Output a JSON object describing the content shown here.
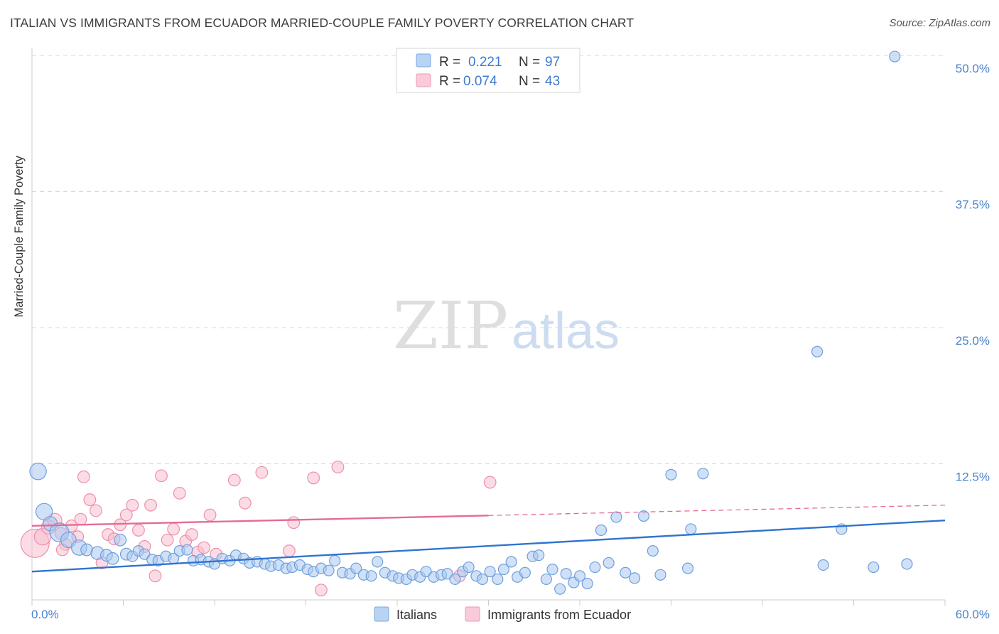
{
  "title": "ITALIAN VS IMMIGRANTS FROM ECUADOR MARRIED-COUPLE FAMILY POVERTY CORRELATION CHART",
  "source": "Source: ZipAtlas.com",
  "watermark": {
    "part1": "ZIP",
    "part2": "atlas"
  },
  "colors": {
    "blue_fill": "#a9c8f0",
    "blue_stroke": "#6e9fdc",
    "blue_line": "#2f74cf",
    "pink_fill": "#f7bfd0",
    "pink_stroke": "#ee8fab",
    "pink_line": "#e56b93",
    "axis_text": "#4a82cc",
    "grid": "#d9d9d9"
  },
  "chart_data": {
    "type": "scatter",
    "xlabel": "",
    "ylabel": "Married-Couple Family Poverty",
    "xlim": [
      0,
      60
    ],
    "ylim": [
      0,
      50
    ],
    "x_tick_labels": [
      {
        "value": 0,
        "label": "0.0%"
      },
      {
        "value": 60,
        "label": "60.0%"
      }
    ],
    "y_tick_labels": [
      {
        "value": 12.5,
        "label": "12.5%"
      },
      {
        "value": 25,
        "label": "25.0%"
      },
      {
        "value": 37.5,
        "label": "37.5%"
      },
      {
        "value": 50,
        "label": "50.0%"
      }
    ],
    "legend": {
      "position": "top-center",
      "rows": [
        {
          "r_label": "R =",
          "r_value": "0.221",
          "n_label": "N =",
          "n_value": "97"
        },
        {
          "r_label": "R =",
          "r_value": "0.074",
          "n_label": "N =",
          "n_value": "43"
        }
      ]
    },
    "bottom_legend": [
      "Italians",
      "Immigrants from Ecuador"
    ],
    "series": [
      {
        "name": "Italians",
        "trend": {
          "x0": 0,
          "y0": 2.6,
          "x1": 60,
          "y1": 7.3,
          "dashed_from": 60
        },
        "points": [
          [
            0.4,
            11.8,
            1.4
          ],
          [
            0.8,
            8.1,
            1.4
          ],
          [
            1.2,
            7.0,
            1.2
          ],
          [
            1.8,
            6.2,
            1.6
          ],
          [
            2.4,
            5.5,
            1.3
          ],
          [
            3.1,
            4.8,
            1.3
          ],
          [
            3.6,
            4.6,
            1.0
          ],
          [
            4.3,
            4.3,
            1.1
          ],
          [
            4.9,
            4.1,
            1.0
          ],
          [
            5.3,
            3.8,
            1.0
          ],
          [
            5.8,
            5.5,
            1.0
          ],
          [
            6.2,
            4.2,
            1.0
          ],
          [
            6.6,
            4.0,
            0.9
          ],
          [
            7.0,
            4.5,
            0.9
          ],
          [
            7.4,
            4.2,
            0.9
          ],
          [
            7.9,
            3.7,
            0.9
          ],
          [
            8.3,
            3.6,
            0.9
          ],
          [
            8.8,
            4.0,
            0.9
          ],
          [
            9.3,
            3.8,
            0.9
          ],
          [
            9.7,
            4.5,
            0.9
          ],
          [
            10.2,
            4.6,
            0.9
          ],
          [
            10.6,
            3.6,
            0.9
          ],
          [
            11.1,
            3.7,
            0.9
          ],
          [
            11.6,
            3.5,
            0.9
          ],
          [
            12.0,
            3.3,
            0.9
          ],
          [
            12.5,
            3.8,
            0.9
          ],
          [
            13.0,
            3.6,
            0.9
          ],
          [
            13.4,
            4.1,
            0.9
          ],
          [
            13.9,
            3.8,
            0.9
          ],
          [
            14.3,
            3.4,
            0.9
          ],
          [
            14.8,
            3.5,
            0.9
          ],
          [
            15.3,
            3.3,
            0.9
          ],
          [
            15.7,
            3.1,
            0.9
          ],
          [
            16.2,
            3.2,
            0.9
          ],
          [
            16.7,
            2.9,
            0.9
          ],
          [
            17.1,
            3.0,
            0.9
          ],
          [
            17.6,
            3.2,
            0.9
          ],
          [
            18.1,
            2.8,
            0.9
          ],
          [
            18.5,
            2.6,
            0.9
          ],
          [
            19.0,
            2.9,
            0.9
          ],
          [
            19.5,
            2.7,
            0.9
          ],
          [
            19.9,
            3.6,
            0.9
          ],
          [
            20.4,
            2.5,
            0.9
          ],
          [
            20.9,
            2.4,
            0.9
          ],
          [
            21.3,
            2.9,
            0.9
          ],
          [
            21.8,
            2.3,
            0.9
          ],
          [
            22.3,
            2.2,
            0.9
          ],
          [
            22.7,
            3.5,
            0.9
          ],
          [
            23.2,
            2.5,
            0.9
          ],
          [
            23.7,
            2.2,
            0.9
          ],
          [
            24.1,
            2.0,
            0.9
          ],
          [
            24.6,
            1.9,
            0.9
          ],
          [
            25.0,
            2.3,
            0.9
          ],
          [
            25.5,
            2.1,
            0.9
          ],
          [
            25.9,
            2.6,
            0.9
          ],
          [
            26.4,
            2.1,
            0.9
          ],
          [
            26.9,
            2.3,
            0.9
          ],
          [
            27.3,
            2.4,
            0.9
          ],
          [
            27.8,
            1.9,
            0.9
          ],
          [
            28.3,
            2.6,
            0.9
          ],
          [
            28.7,
            3.0,
            0.9
          ],
          [
            29.2,
            2.2,
            0.9
          ],
          [
            29.6,
            1.9,
            0.9
          ],
          [
            30.1,
            2.6,
            0.9
          ],
          [
            30.6,
            1.9,
            0.9
          ],
          [
            31.0,
            2.8,
            0.9
          ],
          [
            31.5,
            3.5,
            0.9
          ],
          [
            31.9,
            2.1,
            0.9
          ],
          [
            32.4,
            2.5,
            0.9
          ],
          [
            32.9,
            4.0,
            0.9
          ],
          [
            33.3,
            4.1,
            0.9
          ],
          [
            33.8,
            1.9,
            0.9
          ],
          [
            34.2,
            2.8,
            0.9
          ],
          [
            34.7,
            1.0,
            0.9
          ],
          [
            35.1,
            2.4,
            0.9
          ],
          [
            35.6,
            1.6,
            0.9
          ],
          [
            36.0,
            2.2,
            0.9
          ],
          [
            36.5,
            1.5,
            0.9
          ],
          [
            37.0,
            3.0,
            0.9
          ],
          [
            37.4,
            6.4,
            0.9
          ],
          [
            37.9,
            3.4,
            0.9
          ],
          [
            38.4,
            7.6,
            0.9
          ],
          [
            39.0,
            2.5,
            0.9
          ],
          [
            39.6,
            2.0,
            0.9
          ],
          [
            40.2,
            7.7,
            0.9
          ],
          [
            40.8,
            4.5,
            0.9
          ],
          [
            41.3,
            2.3,
            0.9
          ],
          [
            42.0,
            11.5,
            0.9
          ],
          [
            43.1,
            2.9,
            0.9
          ],
          [
            43.3,
            6.5,
            0.9
          ],
          [
            44.1,
            11.6,
            0.9
          ],
          [
            51.6,
            22.8,
            0.9
          ],
          [
            52.0,
            3.2,
            0.9
          ],
          [
            53.2,
            6.5,
            0.9
          ],
          [
            55.3,
            3.0,
            0.9
          ],
          [
            56.7,
            49.9,
            0.9
          ],
          [
            57.5,
            3.3,
            0.9
          ]
        ]
      },
      {
        "name": "Immigrants from Ecuador",
        "trend": {
          "x0": 0,
          "y0": 6.8,
          "x1": 60,
          "y1": 8.7,
          "dashed_from": 30
        },
        "points": [
          [
            0.2,
            5.2,
            2.4
          ],
          [
            0.7,
            5.8,
            1.4
          ],
          [
            1.1,
            6.7,
            1.2
          ],
          [
            1.5,
            7.3,
            1.2
          ],
          [
            1.9,
            6.1,
            1.0
          ],
          [
            2.2,
            5.1,
            1.0
          ],
          [
            2.6,
            6.8,
            1.0
          ],
          [
            3.0,
            5.8,
            1.0
          ],
          [
            3.4,
            11.3,
            1.0
          ],
          [
            3.8,
            9.2,
            1.0
          ],
          [
            4.2,
            8.2,
            1.0
          ],
          [
            4.6,
            3.4,
            1.0
          ],
          [
            5.0,
            6.0,
            1.0
          ],
          [
            5.4,
            5.6,
            1.0
          ],
          [
            5.8,
            6.9,
            1.0
          ],
          [
            6.2,
            7.8,
            1.0
          ],
          [
            6.6,
            8.7,
            1.0
          ],
          [
            7.0,
            6.4,
            1.0
          ],
          [
            7.4,
            4.9,
            1.0
          ],
          [
            7.8,
            8.7,
            1.0
          ],
          [
            8.1,
            2.2,
            1.0
          ],
          [
            8.5,
            11.4,
            1.0
          ],
          [
            8.9,
            5.5,
            1.0
          ],
          [
            9.3,
            6.5,
            1.0
          ],
          [
            9.7,
            9.8,
            1.0
          ],
          [
            10.1,
            5.4,
            1.0
          ],
          [
            10.5,
            6.0,
            1.0
          ],
          [
            10.9,
            4.4,
            1.0
          ],
          [
            11.3,
            4.8,
            1.0
          ],
          [
            11.7,
            7.8,
            1.0
          ],
          [
            12.1,
            4.2,
            1.0
          ],
          [
            13.3,
            11.0,
            1.0
          ],
          [
            14.0,
            8.9,
            1.0
          ],
          [
            15.1,
            11.7,
            1.0
          ],
          [
            16.9,
            4.5,
            1.0
          ],
          [
            17.2,
            7.1,
            1.0
          ],
          [
            18.5,
            11.2,
            1.0
          ],
          [
            19.0,
            0.9,
            1.0
          ],
          [
            20.1,
            12.2,
            1.0
          ],
          [
            28.1,
            2.2,
            1.0
          ],
          [
            30.1,
            10.8,
            1.0
          ],
          [
            2.0,
            4.6,
            1.0
          ],
          [
            3.2,
            7.4,
            1.0
          ]
        ]
      }
    ]
  }
}
